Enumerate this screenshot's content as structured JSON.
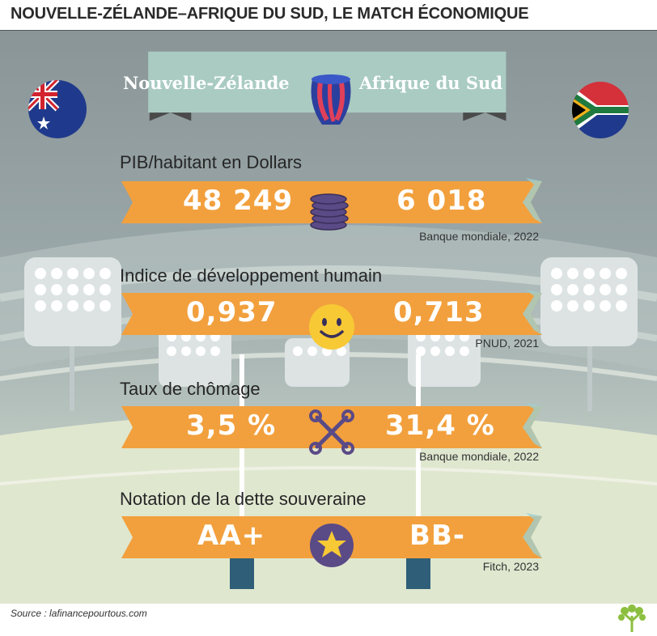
{
  "header": {
    "title": "NOUVELLE-ZÉLANDE–AFRIQUE DU SUD, LE MATCH ÉCONOMIQUE"
  },
  "teams": {
    "left": "Nouvelle-Zélande",
    "right": "Afrique du Sud"
  },
  "indicators": [
    {
      "label": "PIB/habitant en Dollars",
      "left_value": "48 249",
      "right_value": "6 018",
      "source": "Banque mondiale, 2022",
      "icon": "coins-icon"
    },
    {
      "label": "Indice de développement humain",
      "left_value": "0,937",
      "right_value": "0,713",
      "source": "PNUD, 2021",
      "icon": "smiley-icon"
    },
    {
      "label": "Taux de chômage",
      "left_value": "3,5 %",
      "right_value": "31,4 %",
      "source": "Banque mondiale, 2022",
      "icon": "wrenches-icon"
    },
    {
      "label": "Notation de la dette souveraine",
      "left_value": "AA+",
      "right_value": "BB-",
      "source": "Fitch, 2023",
      "icon": "star-icon"
    }
  ],
  "footer": {
    "source": "Source : lafinancepourtous.com"
  },
  "colors": {
    "ribbon": "#f2a03d",
    "ribbon_shadow": "#c97f26",
    "banner": "#a9cbc2",
    "banner_fold": "#4a4a4a",
    "accent_teal": "#9fd0ce"
  }
}
